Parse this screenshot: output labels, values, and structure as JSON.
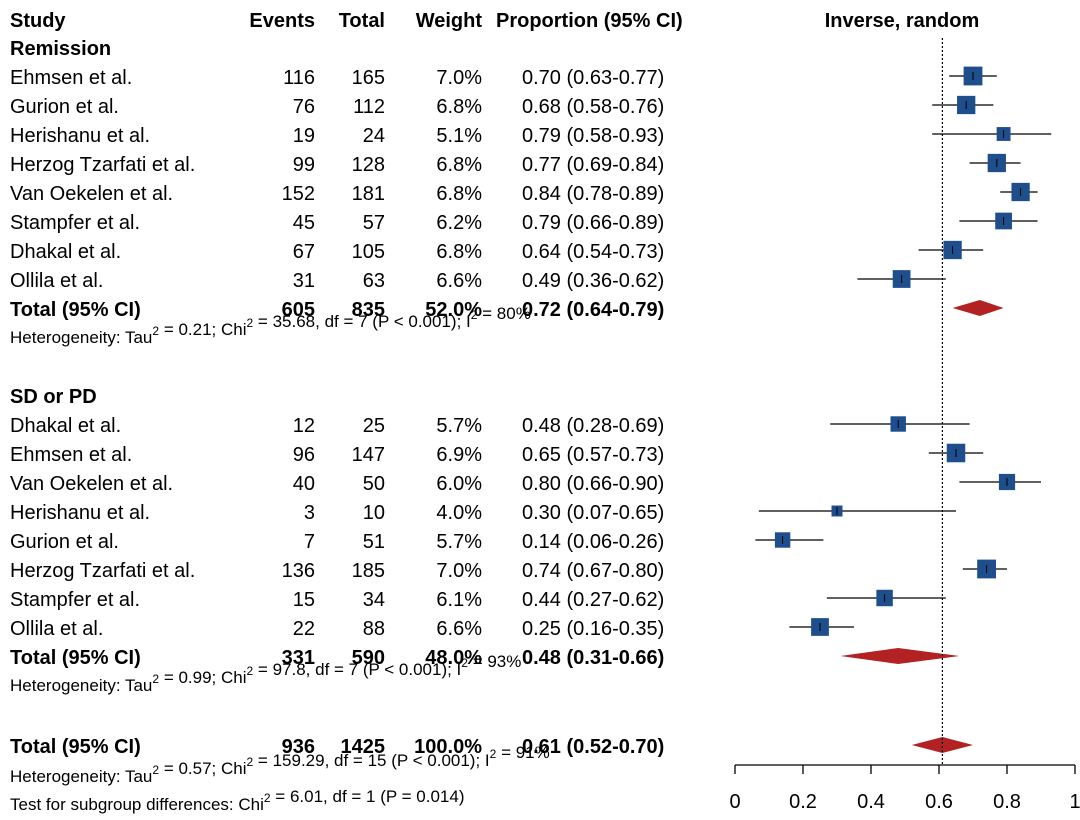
{
  "chart_data": {
    "type": "forest",
    "headers": {
      "study": "Study",
      "events": "Events",
      "total": "Total",
      "weight": "Weight",
      "ci": "Proportion (95% CI)",
      "plot": "Inverse, random"
    },
    "xlim": [
      0,
      1
    ],
    "x_ticks": [
      0,
      0.2,
      0.4,
      0.6,
      0.8,
      1
    ],
    "x_tick_labels": [
      "0",
      "0.2",
      "0.4",
      "0.6",
      "0.8",
      "1"
    ],
    "reference_line": 0.61,
    "subgroups": [
      {
        "name": "Remission",
        "studies": [
          {
            "name": "Ehmsen et al.",
            "events": "116",
            "total": "165",
            "weight": "7.0%",
            "ci_text": "0.70 (0.63-0.77)",
            "est": 0.7,
            "lo": 0.63,
            "hi": 0.77,
            "w": 7.0
          },
          {
            "name": "Gurion et al.",
            "events": "76",
            "total": "112",
            "weight": "6.8%",
            "ci_text": "0.68 (0.58-0.76)",
            "est": 0.68,
            "lo": 0.58,
            "hi": 0.76,
            "w": 6.8
          },
          {
            "name": "Herishanu et al.",
            "events": "19",
            "total": "24",
            "weight": "5.1%",
            "ci_text": "0.79 (0.58-0.93)",
            "est": 0.79,
            "lo": 0.58,
            "hi": 0.93,
            "w": 5.1
          },
          {
            "name": "Herzog Tzarfati et al.",
            "events": "99",
            "total": "128",
            "weight": "6.8%",
            "ci_text": "0.77 (0.69-0.84)",
            "est": 0.77,
            "lo": 0.69,
            "hi": 0.84,
            "w": 6.8
          },
          {
            "name": "Van Oekelen et al.",
            "events": "152",
            "total": "181",
            "weight": "6.8%",
            "ci_text": "0.84 (0.78-0.89)",
            "est": 0.84,
            "lo": 0.78,
            "hi": 0.89,
            "w": 6.8
          },
          {
            "name": "Stampfer et al.",
            "events": "45",
            "total": "57",
            "weight": "6.2%",
            "ci_text": "0.79 (0.66-0.89)",
            "est": 0.79,
            "lo": 0.66,
            "hi": 0.89,
            "w": 6.2
          },
          {
            "name": "Dhakal et al.",
            "events": "67",
            "total": "105",
            "weight": "6.8%",
            "ci_text": "0.64 (0.54-0.73)",
            "est": 0.64,
            "lo": 0.54,
            "hi": 0.73,
            "w": 6.8
          },
          {
            "name": "Ollila et al.",
            "events": "31",
            "total": "63",
            "weight": "6.6%",
            "ci_text": "0.49 (0.36-0.62)",
            "est": 0.49,
            "lo": 0.36,
            "hi": 0.62,
            "w": 6.6
          }
        ],
        "total": {
          "name": "Total (95% CI)",
          "events": "605",
          "total": "835",
          "weight": "52.0%",
          "ci_text": "0.72 (0.64-0.79)",
          "est": 0.72,
          "lo": 0.64,
          "hi": 0.79
        },
        "het": {
          "tau": "Heterogeneity: Tau",
          "chi": " = 0.21; Chi",
          "i": " = 35.68, df = 7 (P < 0.001); I",
          "end": " = 80%",
          "sup": "2"
        }
      },
      {
        "name": "SD or PD",
        "studies": [
          {
            "name": "Dhakal et al.",
            "events": "12",
            "total": "25",
            "weight": "5.7%",
            "ci_text": "0.48 (0.28-0.69)",
            "est": 0.48,
            "lo": 0.28,
            "hi": 0.69,
            "w": 5.7
          },
          {
            "name": "Ehmsen et al.",
            "events": "96",
            "total": "147",
            "weight": "6.9%",
            "ci_text": "0.65 (0.57-0.73)",
            "est": 0.65,
            "lo": 0.57,
            "hi": 0.73,
            "w": 6.9
          },
          {
            "name": "Van Oekelen et al.",
            "events": "40",
            "total": "50",
            "weight": "6.0%",
            "ci_text": "0.80 (0.66-0.90)",
            "est": 0.8,
            "lo": 0.66,
            "hi": 0.9,
            "w": 6.0
          },
          {
            "name": "Herishanu et al.",
            "events": "3",
            "total": "10",
            "weight": "4.0%",
            "ci_text": "0.30 (0.07-0.65)",
            "est": 0.3,
            "lo": 0.07,
            "hi": 0.65,
            "w": 4.0
          },
          {
            "name": "Gurion et al.",
            "events": "7",
            "total": "51",
            "weight": "5.7%",
            "ci_text": "0.14 (0.06-0.26)",
            "est": 0.14,
            "lo": 0.06,
            "hi": 0.26,
            "w": 5.7
          },
          {
            "name": "Herzog Tzarfati et al.",
            "events": "136",
            "total": "185",
            "weight": "7.0%",
            "ci_text": "0.74 (0.67-0.80)",
            "est": 0.74,
            "lo": 0.67,
            "hi": 0.8,
            "w": 7.0
          },
          {
            "name": "Stampfer et al.",
            "events": "15",
            "total": "34",
            "weight": "6.1%",
            "ci_text": "0.44 (0.27-0.62)",
            "est": 0.44,
            "lo": 0.27,
            "hi": 0.62,
            "w": 6.1
          },
          {
            "name": "Ollila et al.",
            "events": "22",
            "total": "88",
            "weight": "6.6%",
            "ci_text": "0.25 (0.16-0.35)",
            "est": 0.25,
            "lo": 0.16,
            "hi": 0.35,
            "w": 6.6
          }
        ],
        "total": {
          "name": "Total (95% CI)",
          "events": "331",
          "total": "590",
          "weight": "48.0%",
          "ci_text": "0.48 (0.31-0.66)",
          "est": 0.48,
          "lo": 0.31,
          "hi": 0.66
        },
        "het": {
          "tau": "Heterogeneity: Tau",
          "chi": " = 0.99; Chi",
          "i": " = 97.8, df = 7 (P < 0.001); I",
          "end": " = 93%",
          "sup": "2"
        }
      }
    ],
    "overall": {
      "total": {
        "name": "Total (95% CI)",
        "events": "936",
        "total": "1425",
        "weight": "100.0%",
        "ci_text": "0.61 (0.52-0.70)",
        "est": 0.61,
        "lo": 0.52,
        "hi": 0.7
      },
      "het": {
        "tau": "Heterogeneity: Tau",
        "chi": " = 0.57; Chi",
        "i": " = 159.29, df = 15 (P < 0.001); I",
        "end": " = 91%",
        "sup": "2"
      },
      "subgroup_test": {
        "pre": "Test for subgroup differences: Chi",
        "post": " = 6.01, df = 1 (P = 0.014)",
        "sup": "2"
      }
    },
    "colors": {
      "square": "#1f4e8c",
      "diamond": "#b22222",
      "line": "#000000"
    }
  }
}
